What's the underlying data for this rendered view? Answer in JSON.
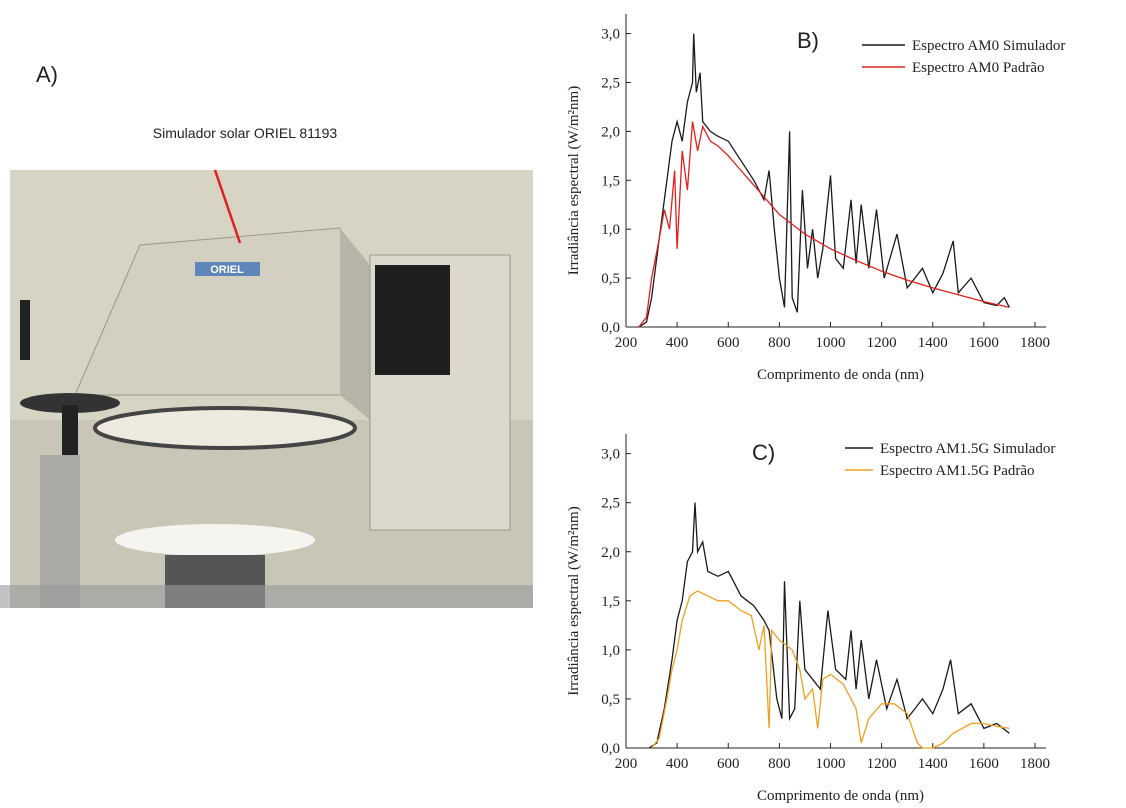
{
  "panel_label": "A)",
  "photo_caption": "Simulador solar ORIEL 81193",
  "photo_brand": "ORIEL",
  "chart_data": [
    {
      "type": "line",
      "annotation": "B)",
      "x_label": "Comprimento de onda (nm)",
      "y_label": "Irradiância espectral (W/m²nm)",
      "xlim": [
        200,
        1800
      ],
      "ylim": [
        0,
        3.2
      ],
      "xticks": [
        200,
        400,
        600,
        800,
        1000,
        1200,
        1400,
        1600,
        1800
      ],
      "yticks": [
        {
          "value": 0,
          "label": "0,0"
        },
        {
          "value": 0.5,
          "label": "0,5"
        },
        {
          "value": 1,
          "label": "1,0"
        },
        {
          "value": 1.5,
          "label": "1,5"
        },
        {
          "value": 2,
          "label": "2,0"
        },
        {
          "value": 2.5,
          "label": "2,5"
        },
        {
          "value": 3,
          "label": "3,0"
        }
      ],
      "series": [
        {
          "name": "Espectro AM0 Simulador",
          "color": "#1a1a1a",
          "x": [
            250,
            280,
            300,
            330,
            360,
            380,
            400,
            420,
            440,
            460,
            465,
            475,
            490,
            500,
            530,
            560,
            600,
            650,
            700,
            740,
            760,
            780,
            800,
            820,
            840,
            850,
            870,
            890,
            910,
            930,
            950,
            970,
            1000,
            1020,
            1050,
            1080,
            1100,
            1120,
            1150,
            1180,
            1210,
            1260,
            1300,
            1360,
            1400,
            1440,
            1480,
            1500,
            1550,
            1600,
            1650,
            1680,
            1700
          ],
          "values": [
            0,
            0.05,
            0.3,
            0.9,
            1.5,
            1.9,
            2.1,
            1.9,
            2.3,
            2.5,
            3.0,
            2.4,
            2.6,
            2.1,
            2.0,
            1.95,
            1.9,
            1.7,
            1.5,
            1.3,
            1.6,
            1.0,
            0.5,
            0.2,
            2.0,
            0.3,
            0.15,
            1.4,
            0.6,
            1.0,
            0.5,
            0.8,
            1.55,
            0.7,
            0.6,
            1.3,
            0.65,
            1.25,
            0.6,
            1.2,
            0.5,
            0.95,
            0.4,
            0.6,
            0.35,
            0.55,
            0.88,
            0.35,
            0.5,
            0.25,
            0.22,
            0.3,
            0.2
          ]
        },
        {
          "name": "Espectro AM0 Padrão",
          "color": "#e0201b",
          "x": [
            250,
            280,
            300,
            330,
            350,
            370,
            390,
            400,
            420,
            440,
            460,
            480,
            500,
            530,
            560,
            600,
            650,
            700,
            750,
            800,
            900,
            1000,
            1100,
            1200,
            1300,
            1400,
            1500,
            1600,
            1700
          ],
          "values": [
            0,
            0.1,
            0.5,
            0.9,
            1.2,
            1.0,
            1.6,
            0.8,
            1.8,
            1.4,
            2.1,
            1.8,
            2.05,
            1.9,
            1.85,
            1.75,
            1.6,
            1.45,
            1.3,
            1.15,
            0.95,
            0.8,
            0.68,
            0.57,
            0.48,
            0.4,
            0.33,
            0.26,
            0.2
          ]
        }
      ]
    },
    {
      "type": "line",
      "annotation": "C)",
      "x_label": "Comprimento de onda (nm)",
      "y_label": "Irradiância espectral (W/m²nm)",
      "xlim": [
        200,
        1800
      ],
      "ylim": [
        0,
        3.2
      ],
      "xticks": [
        200,
        400,
        600,
        800,
        1000,
        1200,
        1400,
        1600,
        1800
      ],
      "yticks": [
        {
          "value": 0,
          "label": "0,0"
        },
        {
          "value": 0.5,
          "label": "0,5"
        },
        {
          "value": 1,
          "label": "1,0"
        },
        {
          "value": 1.5,
          "label": "1,5"
        },
        {
          "value": 2,
          "label": "2,0"
        },
        {
          "value": 2.5,
          "label": "2,5"
        },
        {
          "value": 3,
          "label": "3,0"
        }
      ],
      "series": [
        {
          "name": "Espectro AM1.5G Simulador",
          "color": "#1a1a1a",
          "x": [
            290,
            320,
            350,
            380,
            400,
            420,
            440,
            460,
            470,
            480,
            500,
            520,
            560,
            600,
            650,
            700,
            740,
            760,
            790,
            810,
            820,
            840,
            860,
            880,
            900,
            930,
            960,
            990,
            1020,
            1060,
            1080,
            1100,
            1120,
            1150,
            1180,
            1220,
            1260,
            1300,
            1360,
            1400,
            1440,
            1470,
            1500,
            1550,
            1600,
            1650,
            1700
          ],
          "values": [
            0,
            0.05,
            0.4,
            0.9,
            1.3,
            1.5,
            1.9,
            2.0,
            2.5,
            2.0,
            2.1,
            1.8,
            1.75,
            1.8,
            1.55,
            1.45,
            1.3,
            1.2,
            0.5,
            0.3,
            1.7,
            0.3,
            0.4,
            1.5,
            0.8,
            0.7,
            0.6,
            1.4,
            0.8,
            0.7,
            1.2,
            0.6,
            1.1,
            0.5,
            0.9,
            0.4,
            0.7,
            0.3,
            0.5,
            0.35,
            0.6,
            0.9,
            0.35,
            0.45,
            0.2,
            0.25,
            0.15
          ]
        },
        {
          "name": "Espectro AM1.5G Padrão",
          "color": "#f0a020",
          "x": [
            300,
            330,
            360,
            380,
            400,
            420,
            450,
            480,
            520,
            560,
            600,
            650,
            690,
            720,
            740,
            760,
            770,
            800,
            850,
            880,
            900,
            930,
            950,
            970,
            1000,
            1050,
            1100,
            1120,
            1150,
            1200,
            1250,
            1300,
            1340,
            1360,
            1400,
            1440,
            1480,
            1550,
            1600,
            1650,
            1700
          ],
          "values": [
            0,
            0.1,
            0.5,
            0.8,
            1.0,
            1.3,
            1.55,
            1.6,
            1.55,
            1.5,
            1.5,
            1.4,
            1.35,
            1.0,
            1.25,
            0.2,
            1.2,
            1.1,
            1.0,
            0.8,
            0.5,
            0.6,
            0.2,
            0.7,
            0.75,
            0.65,
            0.4,
            0.05,
            0.3,
            0.45,
            0.45,
            0.35,
            0.05,
            0,
            0,
            0.05,
            0.15,
            0.25,
            0.25,
            0.22,
            0.2
          ]
        }
      ]
    }
  ]
}
